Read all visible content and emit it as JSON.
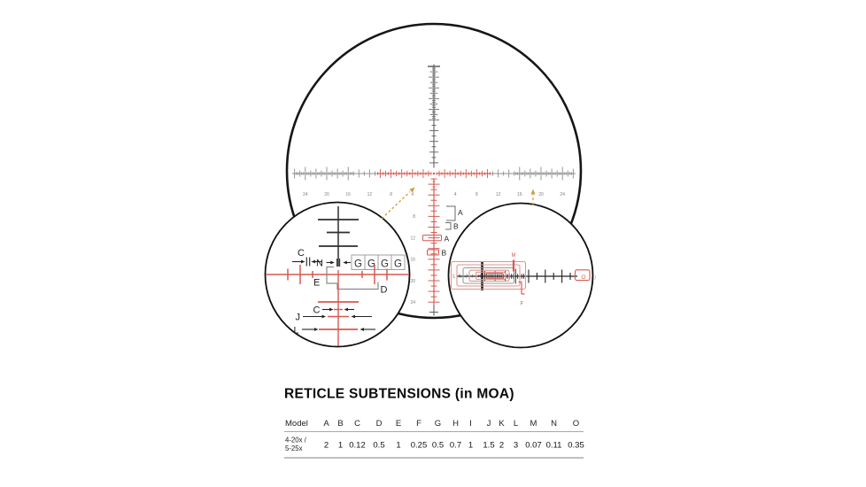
{
  "title": "RETICLE SUBTENSIONS (in MOA)",
  "colors": {
    "red": "#d85950",
    "red_light": "#e2938d",
    "dark": "#2e2e2e",
    "gray": "#8f8f8f",
    "gray_dark": "#5f5f5f",
    "orange": "#cf9a33",
    "label": "#1f1f1f",
    "rule": "#a8a8a8"
  },
  "reticle": {
    "h_labels_left": [
      "24",
      "20",
      "16",
      "12",
      "8",
      "4"
    ],
    "h_labels_right": [
      "4",
      "8",
      "12",
      "16",
      "20",
      "24"
    ],
    "v_labels": [
      "8",
      "12",
      "16",
      "20",
      "24"
    ],
    "callouts": {
      "bracket_a": "A",
      "bracket_b": "B",
      "box_a": "A",
      "box_b": "B"
    }
  },
  "left_detail": {
    "c_top": "C",
    "n_label": "N",
    "g_cells": [
      "G",
      "G",
      "G",
      "G"
    ],
    "e_label": "E",
    "d_label": "D",
    "c_bottom": "C",
    "j_label": "J",
    "l_label": "L"
  },
  "right_detail": {
    "nest_letters": [
      "L",
      "K",
      "J",
      "I",
      "H"
    ],
    "m_label": "M",
    "f_label": "F",
    "o_label": "O",
    "j_end": "J"
  },
  "table": {
    "header_model": "Model",
    "columns": [
      "A",
      "B",
      "C",
      "D",
      "E",
      "F",
      "G",
      "H",
      "I",
      "J",
      "K",
      "L",
      "M",
      "N",
      "O"
    ],
    "model_line1": "4-20x /",
    "model_line2": "5-25x",
    "values": [
      "2",
      "1",
      "0.12",
      "0.5",
      "1",
      "0.25",
      "0.5",
      "0.7",
      "1",
      "1.5",
      "2",
      "3",
      "0.07",
      "0.11",
      "0.35"
    ]
  }
}
